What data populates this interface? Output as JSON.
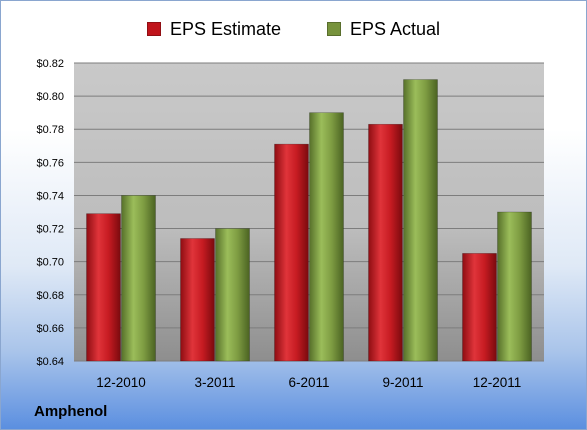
{
  "chart_data": {
    "type": "bar",
    "categories": [
      "12-2010",
      "3-2011",
      "6-2011",
      "9-2011",
      "12-2011"
    ],
    "series": [
      {
        "name": "EPS Estimate",
        "color": "#c0141b",
        "values": [
          0.729,
          0.714,
          0.771,
          0.783,
          0.705
        ]
      },
      {
        "name": "EPS Actual",
        "color": "#77933c",
        "values": [
          0.74,
          0.72,
          0.79,
          0.81,
          0.73
        ]
      }
    ],
    "ylim": [
      0.64,
      0.82
    ],
    "yticks": [
      "$0.64",
      "$0.66",
      "$0.68",
      "$0.70",
      "$0.72",
      "$0.74",
      "$0.76",
      "$0.78",
      "$0.80",
      "$0.82"
    ],
    "ytick_values": [
      0.64,
      0.66,
      0.68,
      0.7,
      0.72,
      0.74,
      0.76,
      0.78,
      0.8,
      0.82
    ],
    "grid": true,
    "legend_position": "top-center",
    "title": "",
    "xlabel": "",
    "ylabel": ""
  },
  "footer": {
    "company": "Amphenol"
  }
}
